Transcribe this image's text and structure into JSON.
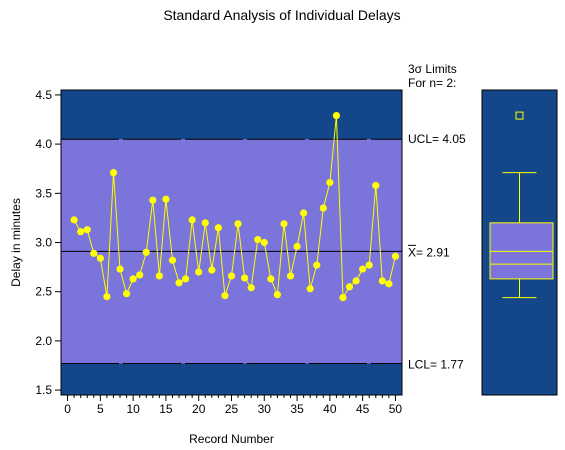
{
  "chart_data": {
    "type": "line",
    "title": "Standard Analysis of Individual Delays",
    "xlabel": "Record Number",
    "ylabel": "Delay in minutes",
    "xlim": [
      -1,
      51
    ],
    "ylim": [
      1.45,
      4.55
    ],
    "x_ticks": [
      "0",
      "5",
      "10",
      "15",
      "20",
      "25",
      "30",
      "35",
      "40",
      "45",
      "50"
    ],
    "y_ticks": [
      "1.5",
      "2.0",
      "2.5",
      "3.0",
      "3.5",
      "4.0",
      "4.5"
    ],
    "limits_header_1": "3σ Limits",
    "limits_header_2": "For n= 2:",
    "ucl": 4.05,
    "center": 2.91,
    "lcl": 1.77,
    "ucl_label": "UCL= 4.05",
    "center_label_symbol": "X",
    "center_label_value": "= 2.91",
    "lcl_label": "LCL= 1.77",
    "x": [
      1,
      2,
      3,
      4,
      5,
      6,
      7,
      8,
      9,
      10,
      11,
      12,
      13,
      14,
      15,
      16,
      17,
      18,
      19,
      20,
      21,
      22,
      23,
      24,
      25,
      26,
      27,
      28,
      29,
      30,
      31,
      32,
      33,
      34,
      35,
      36,
      37,
      38,
      39,
      40,
      41,
      42,
      43,
      44,
      45,
      46,
      47,
      48,
      49,
      50
    ],
    "values": [
      3.23,
      3.11,
      3.13,
      2.89,
      2.84,
      2.45,
      3.71,
      2.73,
      2.48,
      2.63,
      2.67,
      2.9,
      3.43,
      2.66,
      3.44,
      2.82,
      2.59,
      2.63,
      3.23,
      2.7,
      3.2,
      2.72,
      3.15,
      2.46,
      2.66,
      3.19,
      2.64,
      2.54,
      3.03,
      3.0,
      2.63,
      2.47,
      3.19,
      2.66,
      2.96,
      3.3,
      2.53,
      2.77,
      3.35,
      3.61,
      4.29,
      2.44,
      2.55,
      2.61,
      2.73,
      2.77,
      3.58,
      2.61,
      2.58,
      2.86
    ],
    "boxplot": {
      "min": 2.44,
      "q1": 2.63,
      "median": 2.78,
      "mean": 2.91,
      "q3": 3.2,
      "whisker_high": 3.71,
      "outlier": 4.29
    },
    "colors": {
      "outer_zone": "#13478a",
      "inner_zone": "#7b74db",
      "points": "#ffff00",
      "line": "#ffff00",
      "limit_lines": "#000000"
    }
  }
}
